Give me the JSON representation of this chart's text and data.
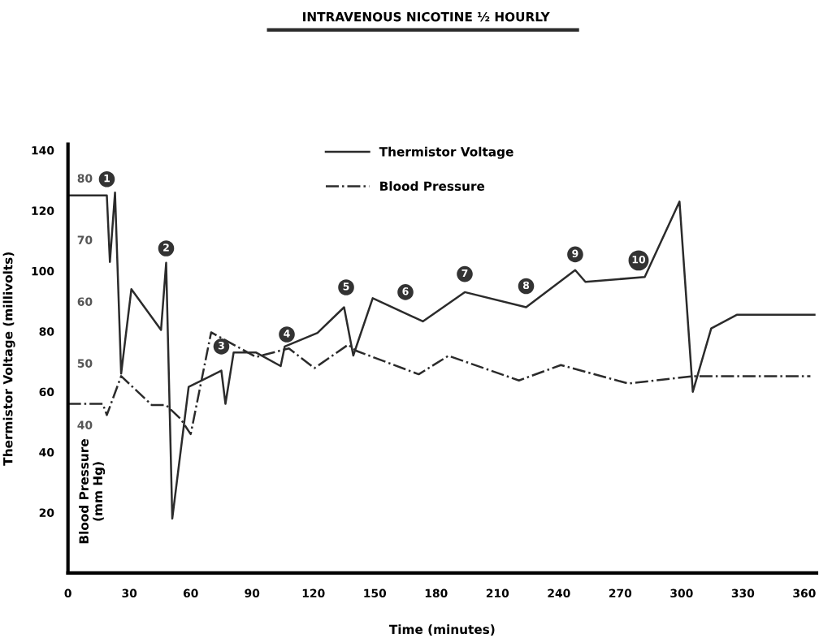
{
  "chart_data": {
    "type": "line",
    "title": "INTRAVENOUS NICOTINE ½ HOURLY",
    "xlabel": "Time (minutes)",
    "ylabel": "Thermistor Voltage (millivolts)",
    "y2label": "Blood Pressure\n(mm Hg)",
    "xlim": [
      0,
      366
    ],
    "xticks": [
      0,
      30,
      60,
      90,
      120,
      150,
      180,
      210,
      240,
      270,
      300,
      330,
      360
    ],
    "ylim": [
      0,
      142
    ],
    "yticks": [
      20,
      40,
      60,
      80,
      100,
      120,
      140
    ],
    "y2lim": [
      16,
      85.5
    ],
    "y2ticks": [
      40,
      50,
      60,
      70,
      80
    ],
    "grid": false,
    "legend": "top",
    "series": [
      {
        "name": "Thermistor Voltage",
        "color": "#2b2b2b",
        "line_style": "solid",
        "x": [
          0,
          19,
          20.5,
          23,
          26,
          31,
          45.5,
          48,
          51,
          59,
          75,
          77,
          81,
          92,
          104,
          106,
          122,
          135,
          139.5,
          149,
          173.5,
          194,
          224,
          248,
          253,
          282,
          299,
          305.5,
          314.5,
          327,
          365
        ],
        "values": [
          125,
          125,
          103,
          126,
          66,
          94,
          80.5,
          102.7,
          18,
          61.6,
          67,
          56,
          73,
          73,
          68.5,
          75,
          79.5,
          88,
          72,
          91,
          83.3,
          93,
          88,
          100.3,
          96.4,
          98,
          123,
          60,
          81,
          85.5,
          85.5
        ]
      },
      {
        "name": "Blood Pressure",
        "color": "#2b2b2b",
        "line_style": "dashdot",
        "axis": "y2",
        "x": [
          0,
          17,
          19,
          26,
          41,
          48,
          55,
          60,
          70,
          92,
          108,
          120.5,
          137,
          141,
          171.5,
          186,
          220.5,
          241,
          274,
          305.5,
          363
        ],
        "values": [
          43.4,
          43.4,
          41.6,
          47.9,
          43.2,
          43.2,
          41,
          38.5,
          55,
          51,
          52.4,
          49.2,
          53,
          52,
          48.2,
          51.2,
          47.2,
          49.7,
          46.7,
          47.9,
          47.9
        ]
      }
    ],
    "annotations": [
      {
        "text": "1",
        "x": 19,
        "y": 130.4
      },
      {
        "text": "2",
        "x": 48,
        "y": 107.5
      },
      {
        "text": "3",
        "x": 75,
        "y": 75
      },
      {
        "text": "4",
        "x": 107,
        "y": 79
      },
      {
        "text": "5",
        "x": 136,
        "y": 94.6
      },
      {
        "text": "6",
        "x": 165,
        "y": 93
      },
      {
        "text": "7",
        "x": 194,
        "y": 99
      },
      {
        "text": "8",
        "x": 224,
        "y": 95
      },
      {
        "text": "9",
        "x": 248,
        "y": 105.5
      },
      {
        "text": "10",
        "x": 279,
        "y": 103.5
      }
    ]
  }
}
